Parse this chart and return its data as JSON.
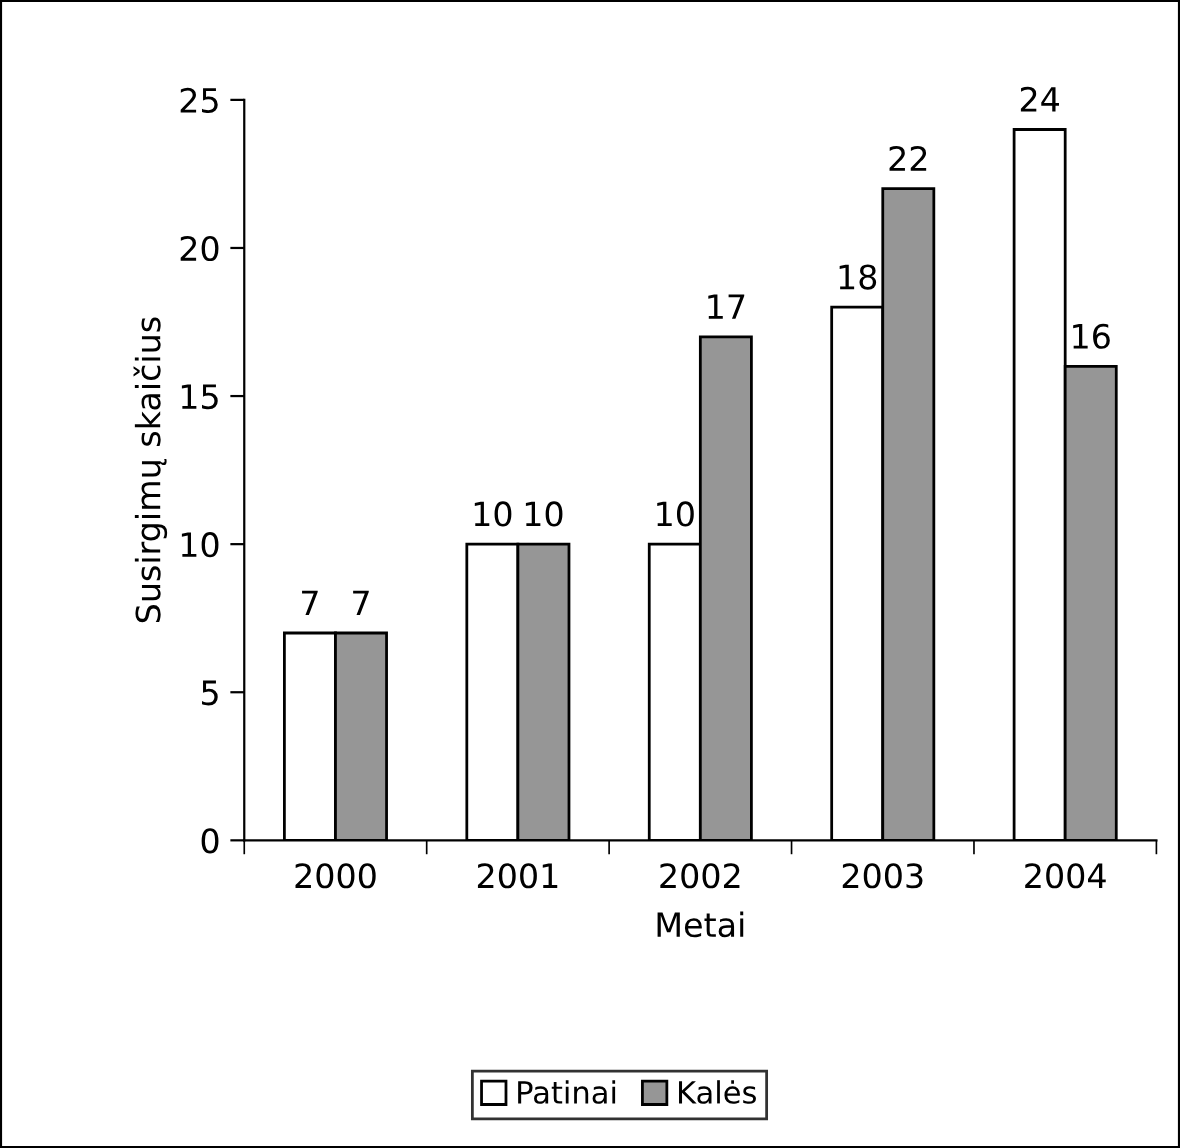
{
  "chart_data": {
    "type": "bar",
    "xlabel": "Metai",
    "ylabel": "Susirgimų skaičius",
    "categories": [
      "2000",
      "2001",
      "2002",
      "2003",
      "2004"
    ],
    "series": [
      {
        "name": "Patinai",
        "color": "#ffffff",
        "values": [
          7,
          10,
          10,
          18,
          24
        ]
      },
      {
        "name": "Kalės",
        "color": "#969696",
        "values": [
          7,
          10,
          17,
          22,
          16
        ]
      }
    ],
    "ylim": [
      0,
      25
    ],
    "yticks": [
      0,
      5,
      10,
      15,
      20,
      25
    ],
    "data_labels": true,
    "grid": false,
    "legend": "bottom"
  }
}
